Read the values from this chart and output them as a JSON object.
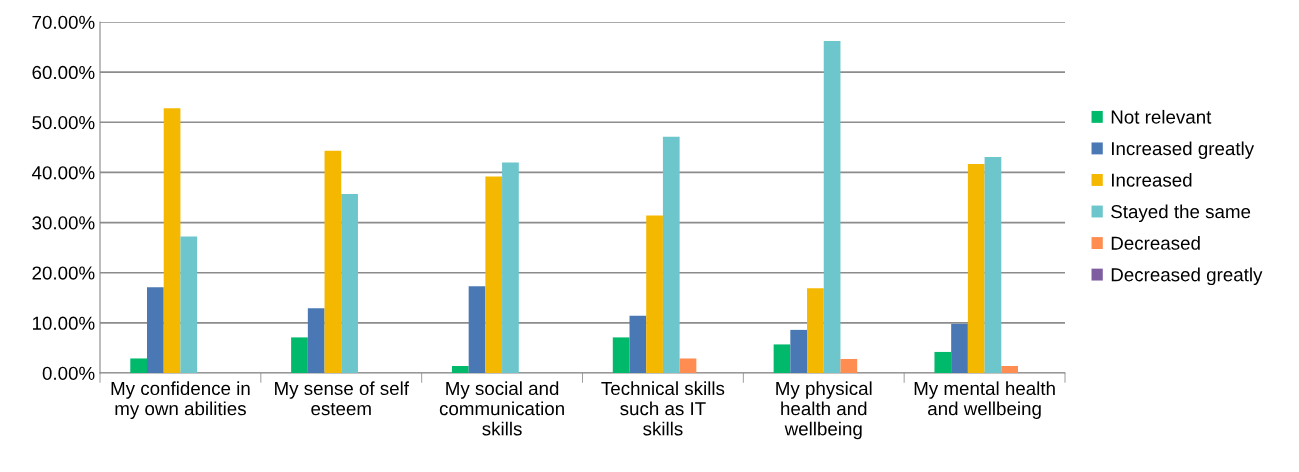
{
  "chart_data": {
    "type": "bar",
    "categories": [
      "My confidence in my own abilities",
      "My sense of self esteem",
      "My social and communication skills",
      "Technical skills such as IT skills",
      "My physical health and wellbeing",
      "My mental health and wellbeing"
    ],
    "series": [
      {
        "name": "Not relevant",
        "color": "#00b96b",
        "values": [
          2.9,
          7.1,
          1.4,
          7.1,
          5.7,
          4.2
        ]
      },
      {
        "name": "Increased greatly",
        "color": "#4a78b5",
        "values": [
          17.1,
          12.9,
          17.3,
          11.4,
          8.6,
          9.8
        ]
      },
      {
        "name": "Increased",
        "color": "#f5b800",
        "values": [
          52.8,
          44.3,
          39.2,
          31.4,
          16.9,
          41.7
        ]
      },
      {
        "name": "Stayed the same",
        "color": "#6cc6cc",
        "values": [
          27.2,
          35.7,
          42.0,
          47.1,
          66.2,
          43.1
        ]
      },
      {
        "name": "Decreased",
        "color": "#ff8c50",
        "values": [
          0,
          0,
          0,
          2.9,
          2.8,
          1.4
        ]
      },
      {
        "name": "Decreased greatly",
        "color": "#7e5ea0",
        "values": [
          0,
          0,
          0,
          0,
          0,
          0
        ]
      }
    ],
    "ylim": [
      0,
      70
    ],
    "yticks": [
      {
        "value": 0,
        "label": "0.00%"
      },
      {
        "value": 10,
        "label": "10.00%"
      },
      {
        "value": 20,
        "label": "20.00%"
      },
      {
        "value": 30,
        "label": "30.00%"
      },
      {
        "value": 40,
        "label": "40.00%"
      },
      {
        "value": 50,
        "label": "50.00%"
      },
      {
        "value": 60,
        "label": "60.00%"
      },
      {
        "value": 70,
        "label": "70.00%"
      }
    ],
    "grid": "y",
    "legend": "right"
  }
}
